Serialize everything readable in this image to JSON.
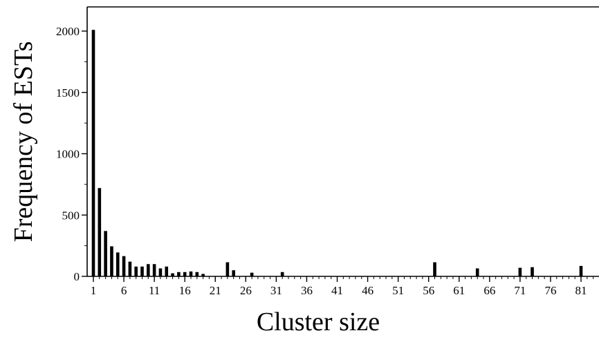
{
  "chart_data": {
    "type": "bar",
    "title": "",
    "xlabel": "Cluster size",
    "ylabel": "Frequency of ESTs",
    "xlim": [
      0,
      84
    ],
    "ylim": [
      0,
      2200
    ],
    "x_ticks": [
      1,
      6,
      11,
      16,
      21,
      26,
      31,
      36,
      41,
      46,
      51,
      56,
      61,
      66,
      71,
      76,
      81
    ],
    "y_ticks": [
      0,
      500,
      1000,
      1500,
      2000
    ],
    "grid": false,
    "legend": "none",
    "bar_color": "#000000",
    "points": [
      {
        "x": 1,
        "y": 2010
      },
      {
        "x": 2,
        "y": 720
      },
      {
        "x": 3,
        "y": 370
      },
      {
        "x": 4,
        "y": 245
      },
      {
        "x": 5,
        "y": 195
      },
      {
        "x": 6,
        "y": 165
      },
      {
        "x": 7,
        "y": 120
      },
      {
        "x": 8,
        "y": 80
      },
      {
        "x": 9,
        "y": 80
      },
      {
        "x": 10,
        "y": 100
      },
      {
        "x": 11,
        "y": 100
      },
      {
        "x": 12,
        "y": 65
      },
      {
        "x": 13,
        "y": 80
      },
      {
        "x": 14,
        "y": 25
      },
      {
        "x": 15,
        "y": 35
      },
      {
        "x": 16,
        "y": 35
      },
      {
        "x": 17,
        "y": 40
      },
      {
        "x": 18,
        "y": 35
      },
      {
        "x": 19,
        "y": 20
      },
      {
        "x": 23,
        "y": 115
      },
      {
        "x": 24,
        "y": 50
      },
      {
        "x": 27,
        "y": 30
      },
      {
        "x": 32,
        "y": 35
      },
      {
        "x": 57,
        "y": 115
      },
      {
        "x": 64,
        "y": 65
      },
      {
        "x": 71,
        "y": 70
      },
      {
        "x": 73,
        "y": 75
      },
      {
        "x": 81,
        "y": 85
      }
    ]
  }
}
